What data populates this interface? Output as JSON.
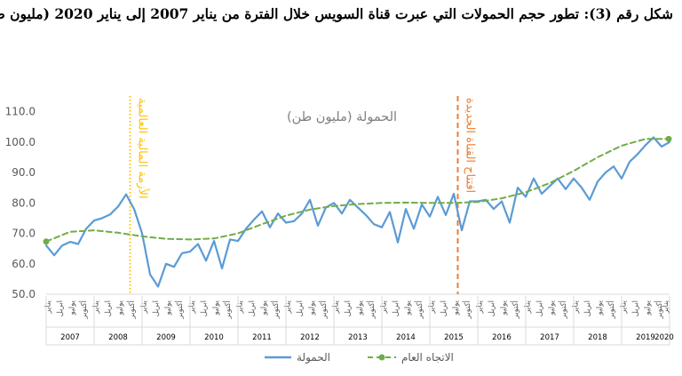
{
  "caption": "شكل رقم (3): تطور حجم الحمولات التي عبرت قناة السويس خلال الفترة من يناير 2007 إلى يناير 2020 (مليون طن)",
  "chart_data": {
    "type": "line",
    "title": "الحمولة (مليون طن)",
    "xlabel": "",
    "ylabel": "",
    "ylim": [
      50,
      115
    ],
    "yticks": [
      "50.0",
      "60.0",
      "70.0",
      "80.0",
      "90.0",
      "100.0",
      "110.0"
    ],
    "grid": false,
    "legend_position": "bottom",
    "month_tick_labels": [
      "يناير",
      "ابريل",
      "يوليو",
      "أكتوبر"
    ],
    "final_tick_label": "يناير",
    "years": [
      "2007",
      "2008",
      "2009",
      "2010",
      "2011",
      "2012",
      "2013",
      "2014",
      "2015",
      "2016",
      "2017",
      "2018",
      "2019",
      "2020"
    ],
    "series": [
      {
        "name": "الحمولة",
        "color": "#5b9bd5",
        "points": [
          [
            "2007-01",
            66.0
          ],
          [
            "2007-03",
            62.8
          ],
          [
            "2007-05",
            66.0
          ],
          [
            "2007-07",
            67.2
          ],
          [
            "2007-09",
            66.5
          ],
          [
            "2007-11",
            71.5
          ],
          [
            "2008-01",
            74.2
          ],
          [
            "2008-03",
            75.0
          ],
          [
            "2008-05",
            76.2
          ],
          [
            "2008-07",
            78.8
          ],
          [
            "2008-09",
            82.8
          ],
          [
            "2008-11",
            78.0
          ],
          [
            "2009-01",
            70.0
          ],
          [
            "2009-03",
            56.5
          ],
          [
            "2009-05",
            52.5
          ],
          [
            "2009-07",
            60.0
          ],
          [
            "2009-09",
            59.0
          ],
          [
            "2009-11",
            63.5
          ],
          [
            "2010-01",
            64.0
          ],
          [
            "2010-03",
            66.5
          ],
          [
            "2010-05",
            61.0
          ],
          [
            "2010-07",
            67.5
          ],
          [
            "2010-09",
            58.5
          ],
          [
            "2010-11",
            68.0
          ],
          [
            "2011-01",
            67.5
          ],
          [
            "2011-03",
            71.5
          ],
          [
            "2011-05",
            74.5
          ],
          [
            "2011-07",
            77.2
          ],
          [
            "2011-09",
            72.0
          ],
          [
            "2011-11",
            76.5
          ],
          [
            "2012-01",
            73.5
          ],
          [
            "2012-03",
            74.0
          ],
          [
            "2012-05",
            76.5
          ],
          [
            "2012-07",
            81.0
          ],
          [
            "2012-09",
            72.5
          ],
          [
            "2012-11",
            78.5
          ],
          [
            "2013-01",
            80.0
          ],
          [
            "2013-03",
            76.5
          ],
          [
            "2013-05",
            81.0
          ],
          [
            "2013-07",
            78.5
          ],
          [
            "2013-09",
            76.0
          ],
          [
            "2013-11",
            73.0
          ],
          [
            "2014-01",
            72.0
          ],
          [
            "2014-03",
            77.0
          ],
          [
            "2014-05",
            67.0
          ],
          [
            "2014-07",
            78.0
          ],
          [
            "2014-09",
            71.5
          ],
          [
            "2014-11",
            79.5
          ],
          [
            "2015-01",
            75.5
          ],
          [
            "2015-03",
            82.0
          ],
          [
            "2015-05",
            76.0
          ],
          [
            "2015-07",
            83.0
          ],
          [
            "2015-09",
            71.0
          ],
          [
            "2015-11",
            80.5
          ],
          [
            "2016-01",
            80.5
          ],
          [
            "2016-03",
            81.0
          ],
          [
            "2016-05",
            78.0
          ],
          [
            "2016-07",
            80.5
          ],
          [
            "2016-09",
            73.5
          ],
          [
            "2016-11",
            85.0
          ],
          [
            "2017-01",
            82.0
          ],
          [
            "2017-03",
            88.0
          ],
          [
            "2017-05",
            83.0
          ],
          [
            "2017-07",
            85.5
          ],
          [
            "2017-09",
            88.0
          ],
          [
            "2017-11",
            84.5
          ],
          [
            "2018-01",
            88.0
          ],
          [
            "2018-03",
            85.0
          ],
          [
            "2018-05",
            81.0
          ],
          [
            "2018-07",
            87.0
          ],
          [
            "2018-09",
            90.0
          ],
          [
            "2018-11",
            92.0
          ],
          [
            "2019-01",
            88.0
          ],
          [
            "2019-03",
            93.5
          ],
          [
            "2019-05",
            96.0
          ],
          [
            "2019-07",
            99.0
          ],
          [
            "2019-09",
            101.5
          ],
          [
            "2019-11",
            98.5
          ],
          [
            "2020-01",
            100.0
          ]
        ]
      },
      {
        "name": "الاتجاه العام",
        "color": "#70ad47",
        "dashed": true,
        "points": [
          [
            "2007-01",
            67.3
          ],
          [
            "2007-07",
            70.5
          ],
          [
            "2008-01",
            71.0
          ],
          [
            "2008-07",
            70.2
          ],
          [
            "2009-01",
            69.0
          ],
          [
            "2009-07",
            68.2
          ],
          [
            "2010-01",
            68.0
          ],
          [
            "2010-07",
            68.3
          ],
          [
            "2011-01",
            70.0
          ],
          [
            "2011-07",
            73.0
          ],
          [
            "2012-01",
            75.8
          ],
          [
            "2012-07",
            77.8
          ],
          [
            "2013-01",
            79.0
          ],
          [
            "2013-07",
            79.6
          ],
          [
            "2014-01",
            80.0
          ],
          [
            "2014-07",
            80.1
          ],
          [
            "2015-01",
            80.0
          ],
          [
            "2015-07",
            80.0
          ],
          [
            "2016-01",
            80.3
          ],
          [
            "2016-07",
            81.5
          ],
          [
            "2017-01",
            83.5
          ],
          [
            "2017-07",
            86.5
          ],
          [
            "2018-01",
            90.5
          ],
          [
            "2018-07",
            95.0
          ],
          [
            "2019-01",
            98.8
          ],
          [
            "2019-07",
            101.0
          ],
          [
            "2020-01",
            101.0
          ]
        ]
      }
    ],
    "annotations": [
      {
        "x": "2008-10",
        "text": "الأزمة المالية العالمية",
        "color": "#ffc000",
        "style": "dotted"
      },
      {
        "x": "2015-08",
        "text": "افتتاح القناة الجديدة",
        "color": "#ed7d31",
        "style": "dashed"
      }
    ]
  }
}
